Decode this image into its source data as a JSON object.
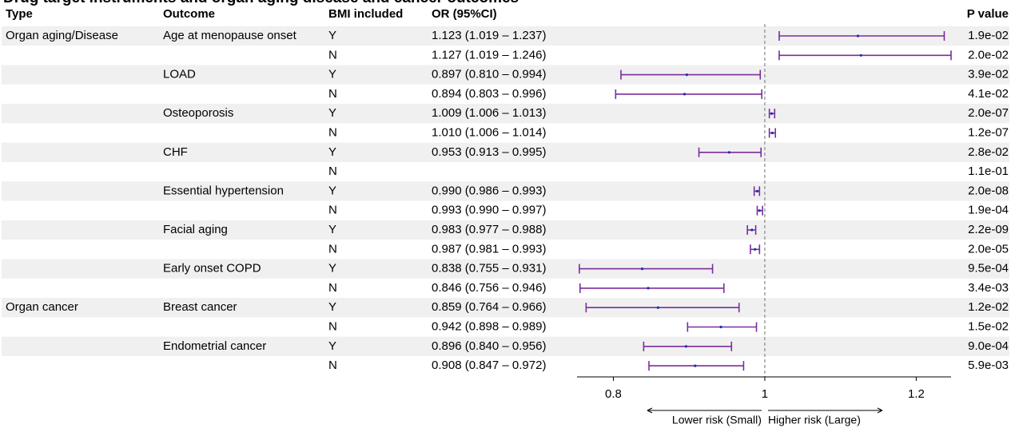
{
  "page_title": "Drug target instruments and organ aging disease and cancer outcomes",
  "colors": {
    "ci_line": "#7b2d9e",
    "point": "#1f2bb5",
    "stripe": "#f0f0f0",
    "ref_line": "#888888"
  },
  "chart_data": {
    "type": "forest",
    "title": "",
    "headers": {
      "type": "Type",
      "outcome": "Outcome",
      "bmi": "BMI included",
      "or": "OR (95%CI)",
      "p": "P value"
    },
    "rows": [
      {
        "type": "Organ aging/Disease",
        "outcome": "Age at menopause onset",
        "bmi": "Y",
        "or_text": "1.123 (1.019 – 1.237)",
        "or": 1.123,
        "lo": 1.019,
        "hi": 1.237,
        "p": "1.9e-02"
      },
      {
        "type": "",
        "outcome": "",
        "bmi": "N",
        "or_text": "1.127 (1.019 – 1.246)",
        "or": 1.127,
        "lo": 1.019,
        "hi": 1.246,
        "p": "2.0e-02"
      },
      {
        "type": "",
        "outcome": "LOAD",
        "bmi": "Y",
        "or_text": "0.897 (0.810 – 0.994)",
        "or": 0.897,
        "lo": 0.81,
        "hi": 0.994,
        "p": "3.9e-02"
      },
      {
        "type": "",
        "outcome": "",
        "bmi": "N",
        "or_text": "0.894 (0.803 – 0.996)",
        "or": 0.894,
        "lo": 0.803,
        "hi": 0.996,
        "p": "4.1e-02"
      },
      {
        "type": "",
        "outcome": "Osteoporosis",
        "bmi": "Y",
        "or_text": "1.009 (1.006 – 1.013)",
        "or": 1.009,
        "lo": 1.006,
        "hi": 1.013,
        "p": "2.0e-07"
      },
      {
        "type": "",
        "outcome": "",
        "bmi": "N",
        "or_text": "1.010 (1.006 – 1.014)",
        "or": 1.01,
        "lo": 1.006,
        "hi": 1.014,
        "p": "1.2e-07"
      },
      {
        "type": "",
        "outcome": "CHF",
        "bmi": "Y",
        "or_text": "0.953 (0.913 – 0.995)",
        "or": 0.953,
        "lo": 0.913,
        "hi": 0.995,
        "p": "2.8e-02"
      },
      {
        "type": "",
        "outcome": "",
        "bmi": "N",
        "or_text": "",
        "or": null,
        "lo": null,
        "hi": null,
        "p": "1.1e-01"
      },
      {
        "type": "",
        "outcome": "Essential hypertension",
        "bmi": "Y",
        "or_text": "0.990 (0.986 – 0.993)",
        "or": 0.99,
        "lo": 0.986,
        "hi": 0.993,
        "p": "2.0e-08"
      },
      {
        "type": "",
        "outcome": "",
        "bmi": "N",
        "or_text": "0.993 (0.990 – 0.997)",
        "or": 0.993,
        "lo": 0.99,
        "hi": 0.997,
        "p": "1.9e-04"
      },
      {
        "type": "",
        "outcome": "Facial aging",
        "bmi": "Y",
        "or_text": "0.983 (0.977 – 0.988)",
        "or": 0.983,
        "lo": 0.977,
        "hi": 0.988,
        "p": "2.2e-09"
      },
      {
        "type": "",
        "outcome": "",
        "bmi": "N",
        "or_text": "0.987 (0.981 – 0.993)",
        "or": 0.987,
        "lo": 0.981,
        "hi": 0.993,
        "p": "2.0e-05"
      },
      {
        "type": "",
        "outcome": "Early onset COPD",
        "bmi": "Y",
        "or_text": "0.838 (0.755 – 0.931)",
        "or": 0.838,
        "lo": 0.755,
        "hi": 0.931,
        "p": "9.5e-04"
      },
      {
        "type": "",
        "outcome": "",
        "bmi": "N",
        "or_text": "0.846 (0.756 – 0.946)",
        "or": 0.846,
        "lo": 0.756,
        "hi": 0.946,
        "p": "3.4e-03"
      },
      {
        "type": "Organ cancer",
        "outcome": "Breast cancer",
        "bmi": "Y",
        "or_text": "0.859 (0.764 – 0.966)",
        "or": 0.859,
        "lo": 0.764,
        "hi": 0.966,
        "p": "1.2e-02"
      },
      {
        "type": "",
        "outcome": "",
        "bmi": "N",
        "or_text": "0.942 (0.898 – 0.989)",
        "or": 0.942,
        "lo": 0.898,
        "hi": 0.989,
        "p": "1.5e-02"
      },
      {
        "type": "",
        "outcome": "Endometrial cancer",
        "bmi": "Y",
        "or_text": "0.896 (0.840 – 0.956)",
        "or": 0.896,
        "lo": 0.84,
        "hi": 0.956,
        "p": "9.0e-04"
      },
      {
        "type": "",
        "outcome": "",
        "bmi": "N",
        "or_text": "0.908 (0.847 – 0.972)",
        "or": 0.908,
        "lo": 0.847,
        "hi": 0.972,
        "p": "5.9e-03"
      }
    ],
    "x_axis": {
      "ticks": [
        0.8,
        1,
        1.2
      ],
      "tick_labels": [
        "0.8",
        "1",
        "1.2"
      ],
      "xlim": [
        0.752,
        1.246
      ],
      "ref": 1
    },
    "direction_labels": {
      "lower": "Lower risk (Small)",
      "higher": "Higher risk (Large)"
    },
    "grid": false,
    "stripes": true
  }
}
